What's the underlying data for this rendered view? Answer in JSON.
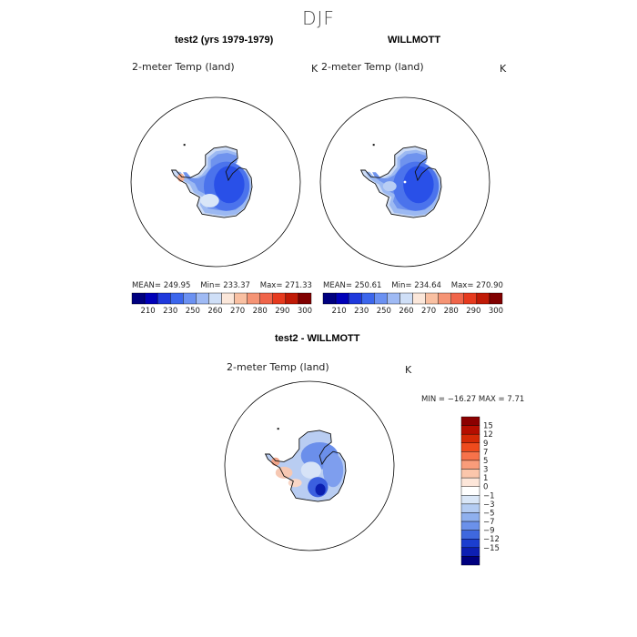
{
  "figure": {
    "title": "DJF",
    "panels": [
      {
        "header": "test2 (yrs 1979-1979)",
        "variable": "2-meter Temp (land)",
        "unit": "K",
        "stats": {
          "mean_label": "MEAN=",
          "mean": "249.95",
          "min_label": "Min=",
          "min": "233.37",
          "max_label": "Max=",
          "max": "271.33"
        }
      },
      {
        "header": "WILLMOTT",
        "variable": "2-meter Temp (land)",
        "unit": "K",
        "stats": {
          "mean_label": "MEAN=",
          "mean": "250.61",
          "min_label": "Min=",
          "min": "234.64",
          "max_label": "Max=",
          "max": "270.90"
        }
      },
      {
        "header": "test2 - WILLMOTT",
        "variable": "2-meter Temp (land)",
        "unit": "K",
        "minmax": "MIN = −16.27  MAX =    7.71"
      }
    ]
  },
  "chart_data": [
    {
      "type": "heatmap",
      "title": "test2 (yrs 1979-1979)",
      "subtitle": "2-meter Temp (land)",
      "unit": "K",
      "mean": 249.95,
      "min": 233.37,
      "max": 271.33,
      "colorbar": {
        "levels": [
          210,
          230,
          250,
          260,
          270,
          280,
          290,
          300
        ],
        "tick_labels": [
          "210",
          "230",
          "250",
          "260",
          "270",
          "280",
          "290",
          "300"
        ],
        "colors": [
          "#00007f",
          "#0000b8",
          "#1f39dc",
          "#3c66ec",
          "#6b91f2",
          "#9fbaf4",
          "#cfdff7",
          "#fbe7da",
          "#f9c0a2",
          "#f59475",
          "#f0654a",
          "#e63a1e",
          "#c01a06",
          "#800000"
        ]
      }
    },
    {
      "type": "heatmap",
      "title": "WILLMOTT",
      "subtitle": "2-meter Temp (land)",
      "unit": "K",
      "mean": 250.61,
      "min": 234.64,
      "max": 270.9,
      "colorbar": {
        "levels": [
          210,
          230,
          250,
          260,
          270,
          280,
          290,
          300
        ],
        "tick_labels": [
          "210",
          "230",
          "250",
          "260",
          "270",
          "280",
          "290",
          "300"
        ],
        "colors": [
          "#00007f",
          "#0000b8",
          "#1f39dc",
          "#3c66ec",
          "#6b91f2",
          "#9fbaf4",
          "#cfdff7",
          "#fbe7da",
          "#f9c0a2",
          "#f59475",
          "#f0654a",
          "#e63a1e",
          "#c01a06",
          "#800000"
        ]
      }
    },
    {
      "type": "heatmap",
      "title": "test2 - WILLMOTT",
      "subtitle": "2-meter Temp (land)",
      "unit": "K",
      "min": -16.27,
      "max": 7.71,
      "colorbar": {
        "tick_labels": [
          "15",
          "12",
          "9",
          "7",
          "5",
          "3",
          "1",
          "0",
          "−1",
          "−3",
          "−5",
          "−7",
          "−9",
          "−12",
          "−15"
        ],
        "colors": [
          "#8b0000",
          "#b50e00",
          "#d42a06",
          "#ee4b1d",
          "#f7724a",
          "#f99c7a",
          "#fbc6ab",
          "#fde6d9",
          "#ffffff",
          "#d9e6f7",
          "#b4ccf2",
          "#8fb0ee",
          "#6b91ea",
          "#3f68de",
          "#1b3ecf",
          "#0d1fb3",
          "#00007f"
        ]
      }
    }
  ]
}
